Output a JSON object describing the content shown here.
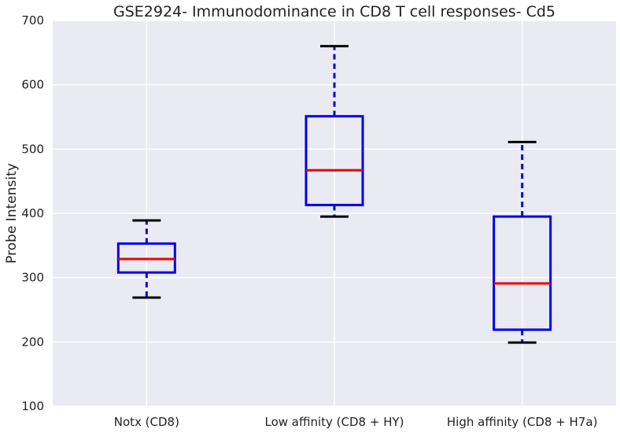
{
  "chart_data": {
    "type": "box",
    "title": "GSE2924- Immunodominance in CD8 T cell responses- Cd5",
    "xlabel": "",
    "ylabel": "Probe Intensity",
    "ylim": [
      100,
      700
    ],
    "yticks": [
      100,
      200,
      300,
      400,
      500,
      600,
      700
    ],
    "grid": true,
    "categories": [
      "Notx (CD8)",
      "Low affinity (CD8 + HY)",
      "High affinity (CD8 + H7a)"
    ],
    "boxes": [
      {
        "category": "Notx (CD8)",
        "whisker_low": 269,
        "q1": 308,
        "median": 329,
        "q3": 353,
        "whisker_high": 389
      },
      {
        "category": "Low affinity (CD8 + HY)",
        "whisker_low": 395,
        "q1": 413,
        "median": 467,
        "q3": 551,
        "whisker_high": 660
      },
      {
        "category": "High affinity (CD8 + H7a)",
        "whisker_low": 199,
        "q1": 219,
        "median": 291,
        "q3": 395,
        "whisker_high": 511
      }
    ],
    "colors": {
      "background": "#eaeaf2",
      "grid": "#ffffff",
      "box": "#0000ee",
      "median": "#ee0000",
      "cap": "#000000"
    }
  }
}
